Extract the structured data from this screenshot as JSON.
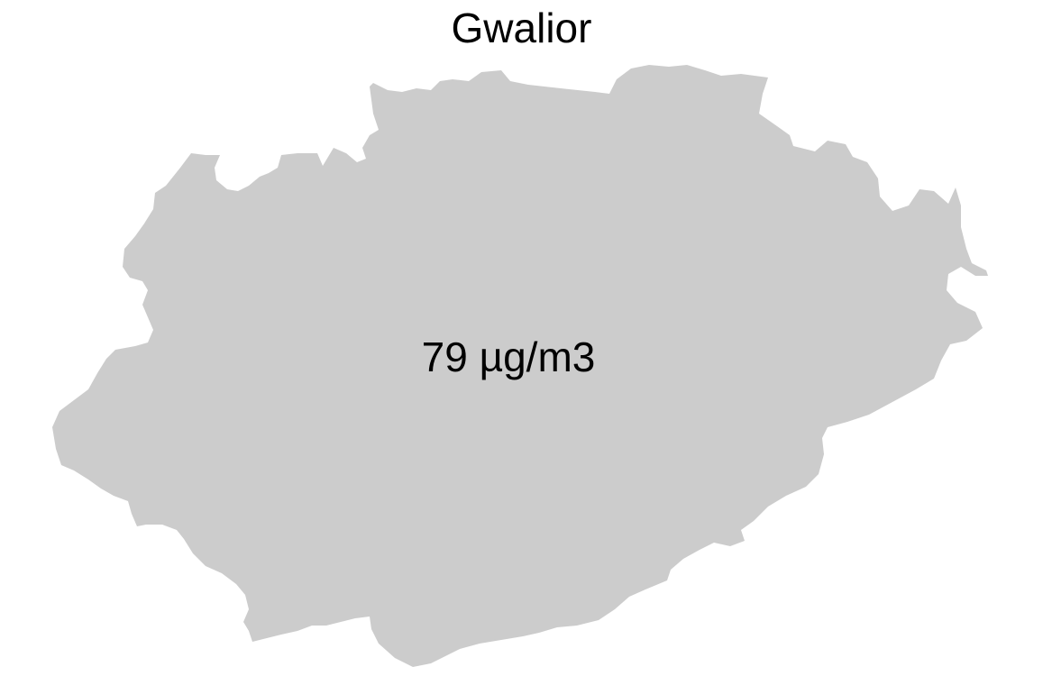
{
  "map": {
    "title": "Gwalior",
    "value_label": "79 µg/m3",
    "region_fill": "#cccccc",
    "background": "#ffffff",
    "text_color": "#000000"
  }
}
